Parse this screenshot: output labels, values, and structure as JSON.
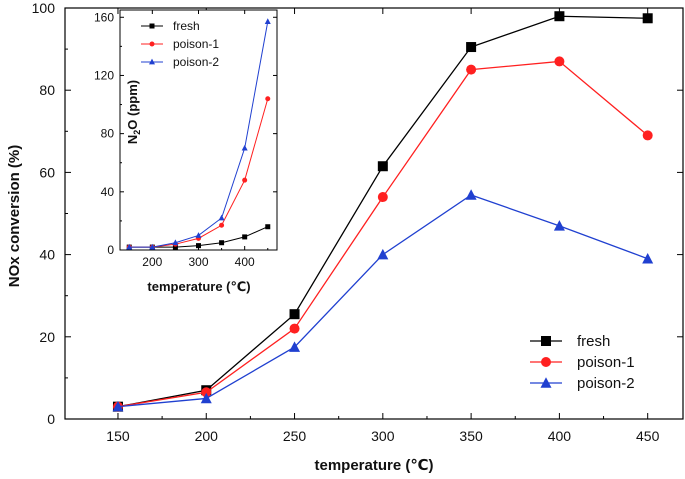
{
  "chart_data": [
    {
      "type": "line",
      "xlabel": "temperature (℃)",
      "ylabel": "NOx conversion (%)",
      "x": [
        150,
        200,
        250,
        300,
        350,
        400,
        450
      ],
      "xlim": [
        120,
        470
      ],
      "ylim": [
        0,
        100
      ],
      "xticks": [
        150,
        200,
        250,
        300,
        350,
        400,
        450
      ],
      "yticks": [
        0,
        20,
        40,
        60,
        80,
        100
      ],
      "grid": false,
      "legend_position": "bottom-right",
      "series": [
        {
          "name": "fresh",
          "color": "#000000",
          "marker": "square",
          "values": [
            3,
            7,
            25.5,
            61.5,
            90.5,
            98,
            97.5
          ]
        },
        {
          "name": "poison-1",
          "color": "#ff2020",
          "marker": "circle",
          "values": [
            3,
            6.5,
            22,
            54,
            85,
            87,
            69
          ]
        },
        {
          "name": "poison-2",
          "color": "#2040d0",
          "marker": "triangle",
          "values": [
            3,
            5,
            17.5,
            40,
            54.5,
            47,
            39
          ]
        }
      ]
    },
    {
      "type": "line",
      "xlabel": "temperature (℃)",
      "ylabel": "N2O (ppm)",
      "ylabel_main": "N",
      "ylabel_sub": "2",
      "ylabel_rest": "O (ppm)",
      "x": [
        150,
        200,
        250,
        300,
        350,
        400,
        450
      ],
      "xlim": [
        130,
        470
      ],
      "ylim": [
        0,
        165
      ],
      "xticks": [
        200,
        300,
        400
      ],
      "yticks": [
        0,
        40,
        80,
        120,
        160
      ],
      "grid": false,
      "legend_position": "top-left",
      "series": [
        {
          "name": "fresh",
          "color": "#000000",
          "marker": "square",
          "values": [
            2,
            2,
            2,
            3,
            5,
            9,
            16
          ]
        },
        {
          "name": "poison-1",
          "color": "#ff2020",
          "marker": "circle",
          "values": [
            2,
            2,
            4,
            8,
            17,
            48,
            104
          ]
        },
        {
          "name": "poison-2",
          "color": "#2040d0",
          "marker": "triangle",
          "values": [
            2,
            2,
            5,
            10,
            22,
            70,
            157
          ]
        }
      ]
    }
  ]
}
